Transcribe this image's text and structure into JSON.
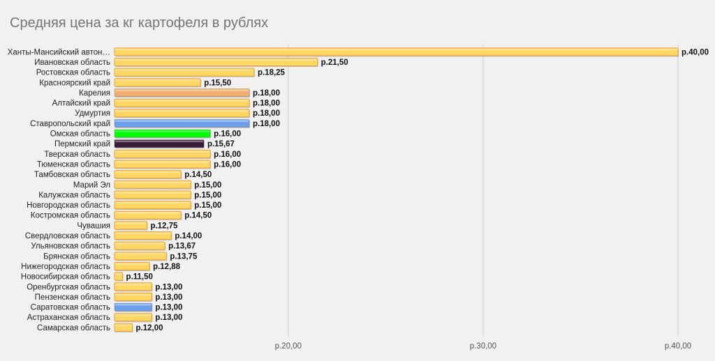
{
  "chart_data": {
    "type": "bar",
    "orientation": "horizontal",
    "title": "Средняя цена за кг картофеля в рублях",
    "xlabel": "",
    "ylabel": "",
    "xlim": [
      11.05,
      40
    ],
    "grid": true,
    "categories": [
      "Ханты-Мансийский автон…",
      "Ивановская область",
      "Ростовская область",
      "Красноярский край",
      "Карелия",
      "Алтайский край",
      "Удмуртия",
      "Ставропольский край",
      "Омская область",
      "Пермский край",
      "Тверская область",
      "Тюменская область",
      "Тамбовская область",
      "Марий Эл",
      "Калужская область",
      "Новгородская область",
      "Костромская область",
      "Чувашия",
      "Свердловская область",
      "Ульяновская область",
      "Брянская область",
      "Нижегородская область",
      "Новосибирская область",
      "Оренбургская область",
      "Пензенская область",
      "Саратовская область",
      "Астраханская область",
      "Самарская область"
    ],
    "values": [
      40.0,
      21.5,
      18.25,
      15.5,
      18.0,
      18.0,
      18.0,
      18.0,
      16.0,
      15.67,
      16.0,
      16.0,
      14.5,
      15.0,
      15.0,
      15.0,
      14.5,
      12.75,
      14.0,
      13.67,
      13.75,
      12.88,
      11.5,
      13.0,
      13.0,
      13.0,
      13.0,
      12.0
    ],
    "value_labels": [
      "р.40,00",
      "р.21,50",
      "р.18,25",
      "р.15,50",
      "р.18,00",
      "р.18,00",
      "р.18,00",
      "р.18,00",
      "р.16,00",
      "р.15,67",
      "р.16,00",
      "р.16,00",
      "р.14,50",
      "р.15,00",
      "р.15,00",
      "р.15,00",
      "р.14,50",
      "р.12,75",
      "р.14,00",
      "р.13,67",
      "р.13,75",
      "р.12,88",
      "р.11,50",
      "р.13,00",
      "р.13,00",
      "р.13,00",
      "р.13,00",
      "р.12,00"
    ],
    "bar_colors": [
      "#fdd663",
      "#fdd663",
      "#fdd663",
      "#fdd663",
      "#f0ad6e",
      "#fdd663",
      "#fdd663",
      "#6d9eeb",
      "#00ff00",
      "#3b1a36",
      "#fdd663",
      "#fdd663",
      "#fdd663",
      "#fdd663",
      "#fdd663",
      "#fdd663",
      "#fdd663",
      "#fdd663",
      "#fdd663",
      "#fdd663",
      "#fdd663",
      "#fdd663",
      "#fdd663",
      "#fdd663",
      "#fdd663",
      "#6d9eeb",
      "#fdd663",
      "#fdd663"
    ],
    "x_ticks": [
      {
        "value": 20,
        "label": "р.20,00"
      },
      {
        "value": 30,
        "label": "р.30,00"
      },
      {
        "value": 40,
        "label": "р.40,00"
      }
    ],
    "colors": {
      "background": "#f1f1f1",
      "gridline": "#cfcfcf",
      "bar_border": "#f0a030"
    }
  }
}
